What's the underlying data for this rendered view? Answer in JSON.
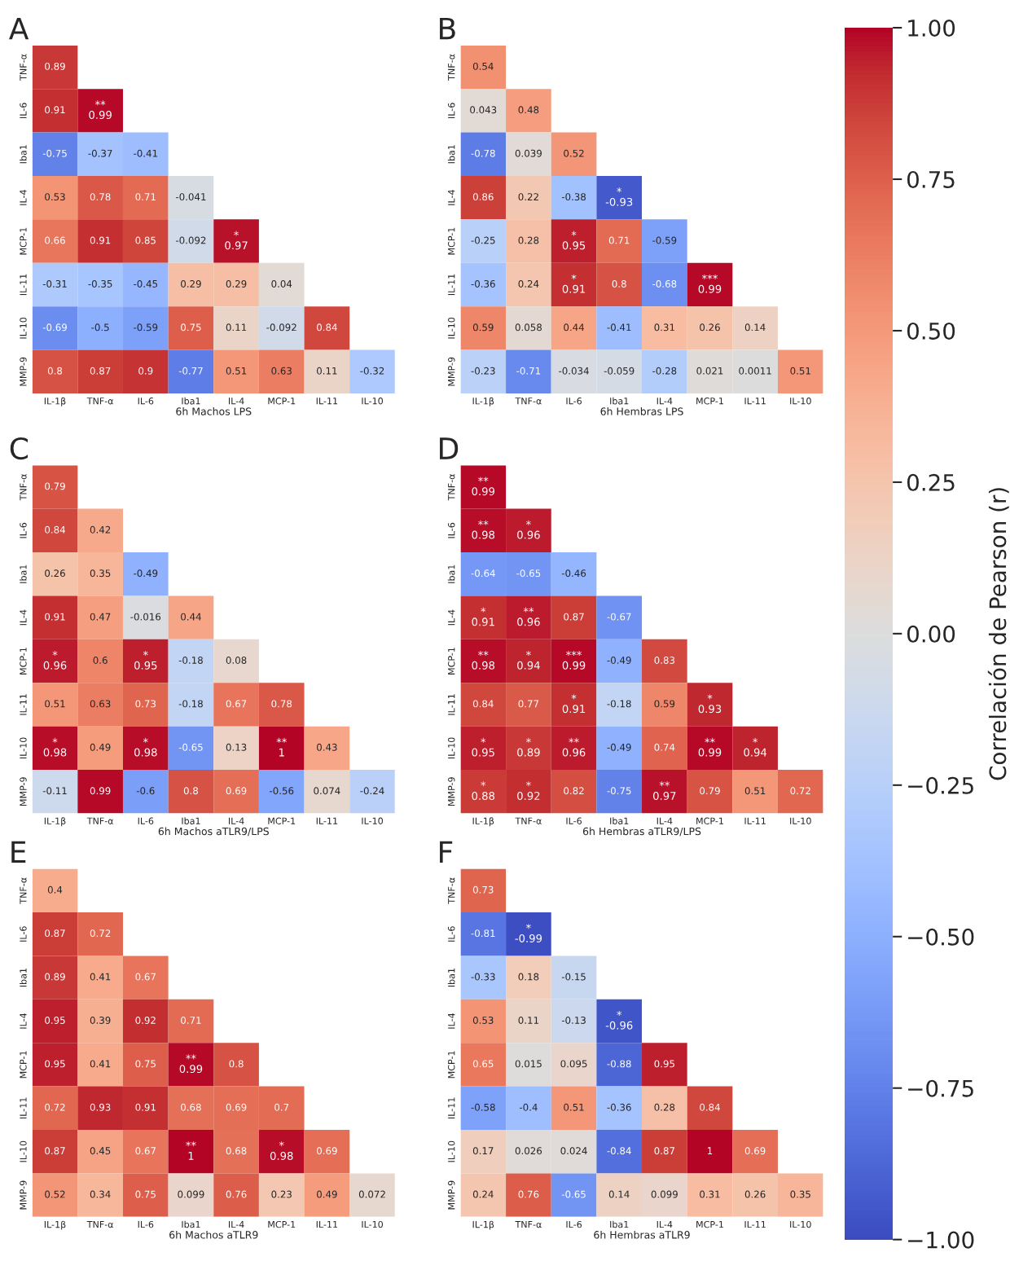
{
  "chart_data": [
    {
      "type": "heatmap",
      "title": "A",
      "xlabel": "6h Machos LPS",
      "clabel": "Correlación de Pearson (r)",
      "clim": [
        -1,
        1
      ],
      "cticks": [
        {
          "value": -1,
          "label": "−1.00"
        },
        {
          "value": -0.75,
          "label": "−0.75"
        },
        {
          "value": -0.5,
          "label": "−0.50"
        },
        {
          "value": -0.25,
          "label": "−0.25"
        },
        {
          "value": 0,
          "label": "0.00"
        },
        {
          "value": 0.25,
          "label": "0.25"
        },
        {
          "value": 0.5,
          "label": "0.50"
        },
        {
          "value": 0.75,
          "label": "0.75"
        },
        {
          "value": 1,
          "label": "1.00"
        }
      ],
      "categories": [
        "IL-1β",
        "TNF-α",
        "IL-6",
        "Iba1",
        "IL-4",
        "MCP-1",
        "IL-11",
        "IL-10"
      ],
      "y_categories": [
        "TNF-α",
        "IL-6",
        "Iba1",
        "IL-4",
        "MCP-1",
        "IL-11",
        "IL-10",
        "MMP-9"
      ],
      "cells": [
        [
          0.89,
          null,
          null,
          null,
          null,
          null,
          null,
          null
        ],
        [
          0.91,
          0.99,
          null,
          null,
          null,
          null,
          null,
          null
        ],
        [
          -0.75,
          -0.37,
          -0.41,
          null,
          null,
          null,
          null,
          null
        ],
        [
          0.53,
          0.78,
          0.71,
          -0.041,
          null,
          null,
          null,
          null
        ],
        [
          0.66,
          0.91,
          0.85,
          -0.092,
          0.97,
          null,
          null,
          null
        ],
        [
          -0.31,
          -0.35,
          -0.45,
          0.29,
          0.29,
          0.04,
          null,
          null
        ],
        [
          -0.69,
          -0.5,
          -0.59,
          0.75,
          0.11,
          -0.092,
          0.84,
          null
        ],
        [
          0.8,
          0.87,
          0.9,
          -0.77,
          0.51,
          0.63,
          0.11,
          -0.32
        ]
      ],
      "cell_labels": [
        [
          "0.89",
          null,
          null,
          null,
          null,
          null,
          null,
          null
        ],
        [
          "0.91",
          "**\n0.99",
          null,
          null,
          null,
          null,
          null,
          null
        ],
        [
          "-0.75",
          "-0.37",
          "-0.41",
          null,
          null,
          null,
          null,
          null
        ],
        [
          "0.53",
          "0.78",
          "0.71",
          "-0.041",
          null,
          null,
          null,
          null
        ],
        [
          "0.66",
          "0.91",
          "0.85",
          "-0.092",
          "*\n0.97",
          null,
          null,
          null
        ],
        [
          "-0.31",
          "-0.35",
          "-0.45",
          "0.29",
          "0.29",
          "0.04",
          null,
          null
        ],
        [
          "-0.69",
          "-0.5",
          "-0.59",
          "0.75",
          "0.11",
          "-0.092",
          "0.84",
          null
        ],
        [
          "0.8",
          "0.87",
          "0.9",
          "-0.77",
          "0.51",
          "0.63",
          "0.11",
          "-0.32"
        ]
      ]
    },
    {
      "type": "heatmap",
      "title": "B",
      "xlabel": "6h Hembras LPS",
      "categories": [
        "IL-1β",
        "TNF-α",
        "IL-6",
        "Iba1",
        "IL-4",
        "MCP-1",
        "IL-11",
        "IL-10"
      ],
      "y_categories": [
        "TNF-α",
        "IL-6",
        "Iba1",
        "IL-4",
        "MCP-1",
        "IL-11",
        "IL-10",
        "MMP-9"
      ],
      "cells": [
        [
          0.54,
          null,
          null,
          null,
          null,
          null,
          null,
          null
        ],
        [
          0.043,
          0.48,
          null,
          null,
          null,
          null,
          null,
          null
        ],
        [
          -0.78,
          0.039,
          0.52,
          null,
          null,
          null,
          null,
          null
        ],
        [
          0.86,
          0.22,
          -0.38,
          -0.93,
          null,
          null,
          null,
          null
        ],
        [
          -0.25,
          0.28,
          0.95,
          0.71,
          -0.59,
          null,
          null,
          null
        ],
        [
          -0.36,
          0.24,
          0.91,
          0.8,
          -0.68,
          0.99,
          null,
          null
        ],
        [
          0.59,
          0.058,
          0.44,
          -0.41,
          0.31,
          0.26,
          0.14,
          null
        ],
        [
          -0.23,
          -0.71,
          -0.034,
          -0.059,
          -0.28,
          0.021,
          0.0011,
          0.51
        ]
      ],
      "cell_labels": [
        [
          "0.54",
          null,
          null,
          null,
          null,
          null,
          null,
          null
        ],
        [
          "0.043",
          "0.48",
          null,
          null,
          null,
          null,
          null,
          null
        ],
        [
          "-0.78",
          "0.039",
          "0.52",
          null,
          null,
          null,
          null,
          null
        ],
        [
          "0.86",
          "0.22",
          "-0.38",
          "*\n-0.93",
          null,
          null,
          null,
          null
        ],
        [
          "-0.25",
          "0.28",
          "*\n0.95",
          "0.71",
          "-0.59",
          null,
          null,
          null
        ],
        [
          "-0.36",
          "0.24",
          "*\n0.91",
          "0.8",
          "-0.68",
          "***\n0.99",
          null,
          null
        ],
        [
          "0.59",
          "0.058",
          "0.44",
          "-0.41",
          "0.31",
          "0.26",
          "0.14",
          null
        ],
        [
          "-0.23",
          "-0.71",
          "-0.034",
          "-0.059",
          "-0.28",
          "0.021",
          "0.0011",
          "0.51"
        ]
      ]
    },
    {
      "type": "heatmap",
      "title": "C",
      "xlabel": "6h Machos aTLR9/LPS",
      "categories": [
        "IL-1β",
        "TNF-α",
        "IL-6",
        "Iba1",
        "IL-4",
        "MCP-1",
        "IL-11",
        "IL-10"
      ],
      "y_categories": [
        "TNF-α",
        "IL-6",
        "Iba1",
        "IL-4",
        "MCP-1",
        "IL-11",
        "IL-10",
        "MMP-9"
      ],
      "cells": [
        [
          0.79,
          null,
          null,
          null,
          null,
          null,
          null,
          null
        ],
        [
          0.84,
          0.42,
          null,
          null,
          null,
          null,
          null,
          null
        ],
        [
          0.26,
          0.35,
          -0.49,
          null,
          null,
          null,
          null,
          null
        ],
        [
          0.91,
          0.47,
          -0.016,
          0.44,
          null,
          null,
          null,
          null
        ],
        [
          0.96,
          0.6,
          0.95,
          -0.18,
          0.08,
          null,
          null,
          null
        ],
        [
          0.51,
          0.63,
          0.73,
          -0.18,
          0.67,
          0.78,
          null,
          null
        ],
        [
          0.98,
          0.49,
          0.98,
          -0.65,
          0.13,
          1,
          0.43,
          null
        ],
        [
          -0.11,
          0.99,
          -0.6,
          0.8,
          0.69,
          -0.56,
          0.074,
          -0.24
        ]
      ],
      "cell_labels": [
        [
          "0.79",
          null,
          null,
          null,
          null,
          null,
          null,
          null
        ],
        [
          "0.84",
          "0.42",
          null,
          null,
          null,
          null,
          null,
          null
        ],
        [
          "0.26",
          "0.35",
          "-0.49",
          null,
          null,
          null,
          null,
          null
        ],
        [
          "0.91",
          "0.47",
          "-0.016",
          "0.44",
          null,
          null,
          null,
          null
        ],
        [
          "*\n0.96",
          "0.6",
          "*\n0.95",
          "-0.18",
          "0.08",
          null,
          null,
          null
        ],
        [
          "0.51",
          "0.63",
          "0.73",
          "-0.18",
          "0.67",
          "0.78",
          null,
          null
        ],
        [
          "*\n0.98",
          "0.49",
          "*\n0.98",
          "-0.65",
          "0.13",
          "**\n1",
          "0.43",
          null
        ],
        [
          "-0.11",
          "0.99",
          "-0.6",
          "0.8",
          "0.69",
          "-0.56",
          "0.074",
          "-0.24"
        ]
      ]
    },
    {
      "type": "heatmap",
      "title": "D",
      "xlabel": "6h Hembras aTLR9/LPS",
      "categories": [
        "IL-1β",
        "TNF-α",
        "IL-6",
        "Iba1",
        "IL-4",
        "MCP-1",
        "IL-11",
        "IL-10"
      ],
      "y_categories": [
        "TNF-α",
        "IL-6",
        "Iba1",
        "IL-4",
        "MCP-1",
        "IL-11",
        "IL-10",
        "MMP-9"
      ],
      "cells": [
        [
          0.99,
          null,
          null,
          null,
          null,
          null,
          null,
          null
        ],
        [
          0.98,
          0.96,
          null,
          null,
          null,
          null,
          null,
          null
        ],
        [
          -0.64,
          -0.65,
          -0.46,
          null,
          null,
          null,
          null,
          null
        ],
        [
          0.91,
          0.96,
          0.87,
          -0.67,
          null,
          null,
          null,
          null
        ],
        [
          0.98,
          0.94,
          0.99,
          -0.49,
          0.83,
          null,
          null,
          null
        ],
        [
          0.84,
          0.77,
          0.91,
          -0.18,
          0.59,
          0.93,
          null,
          null
        ],
        [
          0.95,
          0.89,
          0.96,
          -0.49,
          0.74,
          0.99,
          0.94,
          null
        ],
        [
          0.88,
          0.92,
          0.82,
          -0.75,
          0.97,
          0.79,
          0.51,
          0.72
        ]
      ],
      "cell_labels": [
        [
          "**\n0.99",
          null,
          null,
          null,
          null,
          null,
          null,
          null
        ],
        [
          "**\n0.98",
          "*\n0.96",
          null,
          null,
          null,
          null,
          null,
          null
        ],
        [
          "-0.64",
          "-0.65",
          "-0.46",
          null,
          null,
          null,
          null,
          null
        ],
        [
          "*\n0.91",
          "**\n0.96",
          "0.87",
          "-0.67",
          null,
          null,
          null,
          null
        ],
        [
          "**\n0.98",
          "*\n0.94",
          "***\n0.99",
          "-0.49",
          "0.83",
          null,
          null,
          null
        ],
        [
          "0.84",
          "0.77",
          "*\n0.91",
          "-0.18",
          "0.59",
          "*\n0.93",
          null,
          null
        ],
        [
          "*\n0.95",
          "*\n0.89",
          "**\n0.96",
          "-0.49",
          "0.74",
          "**\n0.99",
          "*\n0.94",
          null
        ],
        [
          "*\n0.88",
          "*\n0.92",
          "0.82",
          "-0.75",
          "**\n0.97",
          "0.79",
          "0.51",
          "0.72"
        ]
      ]
    },
    {
      "type": "heatmap",
      "title": "E",
      "xlabel": "6h Machos aTLR9",
      "categories": [
        "IL-1β",
        "TNF-α",
        "IL-6",
        "Iba1",
        "IL-4",
        "MCP-1",
        "IL-11",
        "IL-10"
      ],
      "y_categories": [
        "TNF-α",
        "IL-6",
        "Iba1",
        "IL-4",
        "MCP-1",
        "IL-11",
        "IL-10",
        "MMP-9"
      ],
      "cells": [
        [
          0.4,
          null,
          null,
          null,
          null,
          null,
          null,
          null
        ],
        [
          0.87,
          0.72,
          null,
          null,
          null,
          null,
          null,
          null
        ],
        [
          0.89,
          0.41,
          0.67,
          null,
          null,
          null,
          null,
          null
        ],
        [
          0.95,
          0.39,
          0.92,
          0.71,
          null,
          null,
          null,
          null
        ],
        [
          0.95,
          0.41,
          0.75,
          0.99,
          0.8,
          null,
          null,
          null
        ],
        [
          0.72,
          0.93,
          0.91,
          0.68,
          0.69,
          0.7,
          null,
          null
        ],
        [
          0.87,
          0.45,
          0.67,
          1,
          0.68,
          0.98,
          0.69,
          null
        ],
        [
          0.52,
          0.34,
          0.75,
          0.099,
          0.76,
          0.23,
          0.49,
          0.072
        ]
      ],
      "cell_labels": [
        [
          "0.4",
          null,
          null,
          null,
          null,
          null,
          null,
          null
        ],
        [
          "0.87",
          "0.72",
          null,
          null,
          null,
          null,
          null,
          null
        ],
        [
          "0.89",
          "0.41",
          "0.67",
          null,
          null,
          null,
          null,
          null
        ],
        [
          "0.95",
          "0.39",
          "0.92",
          "0.71",
          null,
          null,
          null,
          null
        ],
        [
          "0.95",
          "0.41",
          "0.75",
          "**\n0.99",
          "0.8",
          null,
          null,
          null
        ],
        [
          "0.72",
          "0.93",
          "0.91",
          "0.68",
          "0.69",
          "0.7",
          null,
          null
        ],
        [
          "0.87",
          "0.45",
          "0.67",
          "**\n1",
          "0.68",
          "*\n0.98",
          "0.69",
          null
        ],
        [
          "0.52",
          "0.34",
          "0.75",
          "0.099",
          "0.76",
          "0.23",
          "0.49",
          "0.072"
        ]
      ]
    },
    {
      "type": "heatmap",
      "title": "F",
      "xlabel": "6h Hembras aTLR9",
      "categories": [
        "IL-1β",
        "TNF-α",
        "IL-6",
        "Iba1",
        "IL-4",
        "MCP-1",
        "IL-11",
        "IL-10"
      ],
      "y_categories": [
        "TNF-α",
        "IL-6",
        "Iba1",
        "IL-4",
        "MCP-1",
        "IL-11",
        "IL-10",
        "MMP-9"
      ],
      "cells": [
        [
          0.73,
          null,
          null,
          null,
          null,
          null,
          null,
          null
        ],
        [
          -0.81,
          -0.99,
          null,
          null,
          null,
          null,
          null,
          null
        ],
        [
          -0.33,
          0.18,
          -0.15,
          null,
          null,
          null,
          null,
          null
        ],
        [
          0.53,
          0.11,
          -0.13,
          -0.96,
          null,
          null,
          null,
          null
        ],
        [
          0.65,
          0.015,
          0.095,
          -0.88,
          0.95,
          null,
          null,
          null
        ],
        [
          -0.58,
          -0.4,
          0.51,
          -0.36,
          0.28,
          0.84,
          null,
          null
        ],
        [
          0.17,
          0.026,
          0.024,
          -0.84,
          0.87,
          1,
          0.69,
          null
        ],
        [
          0.24,
          0.76,
          -0.65,
          0.14,
          0.099,
          0.31,
          0.26,
          0.35
        ]
      ],
      "cell_labels": [
        [
          "0.73",
          null,
          null,
          null,
          null,
          null,
          null,
          null
        ],
        [
          "-0.81",
          "*\n-0.99",
          null,
          null,
          null,
          null,
          null,
          null
        ],
        [
          "-0.33",
          "0.18",
          "-0.15",
          null,
          null,
          null,
          null,
          null
        ],
        [
          "0.53",
          "0.11",
          "-0.13",
          "*\n-0.96",
          null,
          null,
          null,
          null
        ],
        [
          "0.65",
          "0.015",
          "0.095",
          "-0.88",
          "0.95",
          null,
          null,
          null
        ],
        [
          "-0.58",
          "-0.4",
          "0.51",
          "-0.36",
          "0.28",
          "0.84",
          null,
          null
        ],
        [
          "0.17",
          "0.026",
          "0.024",
          "-0.84",
          "0.87",
          "1",
          "0.69",
          null
        ],
        [
          "0.24",
          "0.76",
          "-0.65",
          "0.14",
          "0.099",
          "0.31",
          "0.26",
          "0.35"
        ]
      ]
    }
  ]
}
